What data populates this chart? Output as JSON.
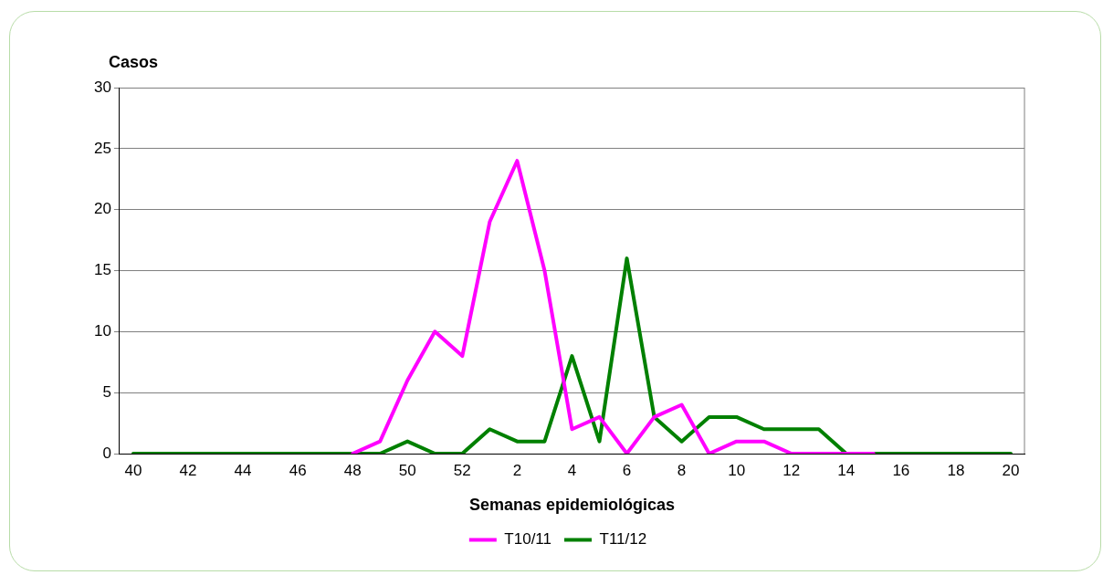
{
  "chart_data": {
    "type": "line",
    "ylabel": "Casos",
    "xlabel": "Semanas epidemiológicas",
    "categories": [
      "40",
      null,
      "42",
      null,
      "44",
      null,
      "46",
      null,
      "48",
      null,
      "50",
      null,
      "52",
      null,
      "2",
      null,
      "4",
      null,
      "6",
      null,
      "8",
      null,
      "10",
      null,
      "12",
      null,
      "14",
      null,
      "16",
      null,
      "18",
      null,
      "20"
    ],
    "series": [
      {
        "name": "T10/11",
        "color": "#ff00ff",
        "values": [
          null,
          null,
          null,
          null,
          null,
          null,
          null,
          null,
          0,
          1,
          6,
          10,
          8,
          19,
          24,
          15,
          2,
          3,
          0,
          3,
          4,
          0,
          1,
          1,
          0,
          0,
          0,
          0,
          null,
          null,
          null,
          null,
          null
        ]
      },
      {
        "name": "T11/12",
        "color": "#008000",
        "values": [
          0,
          0,
          0,
          0,
          0,
          0,
          0,
          0,
          0,
          0,
          1,
          0,
          0,
          2,
          1,
          1,
          8,
          1,
          16,
          3,
          1,
          3,
          3,
          2,
          2,
          2,
          0,
          0,
          0,
          0,
          0,
          0,
          0
        ]
      }
    ],
    "ylim": [
      0,
      30
    ],
    "yticks": [
      0,
      5,
      10,
      15,
      20,
      25,
      30
    ],
    "grid": "y",
    "legend": "bottom",
    "marker": "none",
    "line_style": "solid"
  }
}
